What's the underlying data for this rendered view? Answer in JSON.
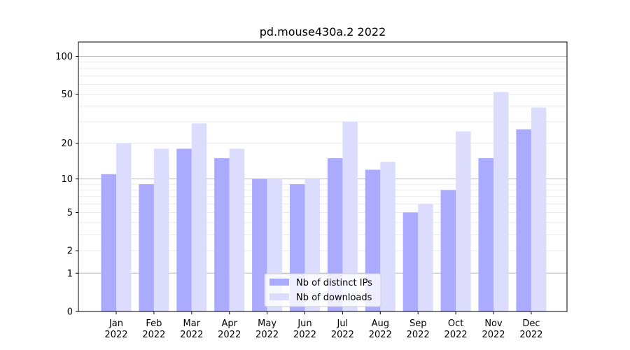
{
  "chart_data": {
    "type": "bar",
    "title": "pd.mouse430a.2 2022",
    "xlabel": "",
    "ylabel": "",
    "y_scale": "symlog",
    "ylim": [
      0,
      130
    ],
    "y_ticks": [
      0,
      1,
      2,
      5,
      10,
      20,
      50,
      100
    ],
    "categories": [
      [
        "Jan",
        "2022"
      ],
      [
        "Feb",
        "2022"
      ],
      [
        "Mar",
        "2022"
      ],
      [
        "Apr",
        "2022"
      ],
      [
        "May",
        "2022"
      ],
      [
        "Jun",
        "2022"
      ],
      [
        "Jul",
        "2022"
      ],
      [
        "Aug",
        "2022"
      ],
      [
        "Sep",
        "2022"
      ],
      [
        "Oct",
        "2022"
      ],
      [
        "Nov",
        "2022"
      ],
      [
        "Dec",
        "2022"
      ]
    ],
    "series": [
      {
        "name": "Nb of distinct IPs",
        "color": "#aaaaff",
        "values": [
          11,
          9,
          18,
          15,
          10,
          9,
          15,
          12,
          5,
          8,
          15,
          26
        ]
      },
      {
        "name": "Nb of downloads",
        "color": "#dcdcff",
        "values": [
          20,
          18,
          29,
          18,
          10,
          10,
          30,
          14,
          6,
          25,
          52,
          39
        ]
      }
    ],
    "grid": true,
    "legend_position": "bottom-center"
  }
}
